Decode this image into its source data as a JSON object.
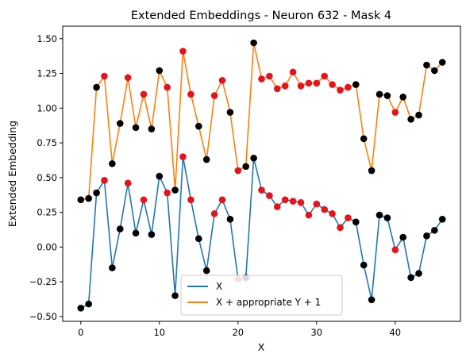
{
  "chart_data": {
    "type": "line",
    "title": "Extended Embeddings - Neuron 632 - Mask 4",
    "xlabel": "X",
    "ylabel": "Extended Embedding",
    "xlim": [
      -2.3,
      48.3
    ],
    "ylim": [
      -0.535,
      1.59
    ],
    "xticks": [
      0,
      10,
      20,
      30,
      40
    ],
    "yticks": [
      -0.5,
      -0.25,
      0.0,
      0.25,
      0.5,
      0.75,
      1.0,
      1.25,
      1.5
    ],
    "ytick_labels": [
      "−0.50",
      "−0.25",
      "0.00",
      "0.25",
      "0.50",
      "0.75",
      "1.00",
      "1.25",
      "1.50"
    ],
    "grid": false,
    "legend_position": "lower-center",
    "x": [
      0,
      1,
      2,
      3,
      4,
      5,
      6,
      7,
      8,
      9,
      10,
      11,
      12,
      13,
      14,
      15,
      16,
      17,
      18,
      19,
      20,
      21,
      22,
      23,
      24,
      25,
      26,
      27,
      28,
      29,
      30,
      31,
      32,
      33,
      34,
      35,
      36,
      37,
      38,
      39,
      40,
      41,
      42,
      43,
      44,
      45,
      46
    ],
    "series": [
      {
        "name": "X",
        "color": "#1f77b4",
        "values": [
          -0.44,
          -0.41,
          0.39,
          0.48,
          -0.15,
          0.13,
          0.46,
          0.1,
          0.34,
          0.09,
          0.51,
          0.39,
          -0.35,
          0.65,
          0.34,
          0.06,
          -0.17,
          0.24,
          0.34,
          0.2,
          -0.23,
          -0.22,
          0.64,
          0.41,
          0.37,
          0.29,
          0.34,
          0.33,
          0.32,
          0.23,
          0.31,
          0.27,
          0.24,
          0.14,
          0.21,
          0.18,
          -0.13,
          -0.38,
          0.23,
          0.21,
          -0.02,
          0.07,
          -0.22,
          -0.19,
          0.08,
          0.12,
          0.2
        ]
      },
      {
        "name": "X + appropriate Y + 1",
        "color": "#ff7f0e",
        "values": [
          0.34,
          0.35,
          1.15,
          1.23,
          0.6,
          0.89,
          1.22,
          0.86,
          1.1,
          0.85,
          1.27,
          1.15,
          0.41,
          1.41,
          1.1,
          0.87,
          0.63,
          1.09,
          1.2,
          0.97,
          0.55,
          0.58,
          1.47,
          1.21,
          1.23,
          1.14,
          1.16,
          1.26,
          1.16,
          1.18,
          1.18,
          1.23,
          1.17,
          1.13,
          1.15,
          1.17,
          0.78,
          0.55,
          1.1,
          1.09,
          0.97,
          1.08,
          0.92,
          0.95,
          1.31,
          1.27,
          1.33
        ]
      }
    ],
    "point_colors": [
      "black",
      "black",
      "black",
      "red",
      "black",
      "black",
      "red",
      "black",
      "red",
      "black",
      "black",
      "red",
      "black",
      "red",
      "red",
      "black",
      "black",
      "red",
      "red",
      "black",
      "red",
      "black",
      "black",
      "red",
      "red",
      "red",
      "red",
      "red",
      "red",
      "red",
      "red",
      "red",
      "red",
      "red",
      "red",
      "black",
      "black",
      "black",
      "black",
      "black",
      "red",
      "black",
      "black",
      "black",
      "black",
      "black",
      "black"
    ]
  }
}
